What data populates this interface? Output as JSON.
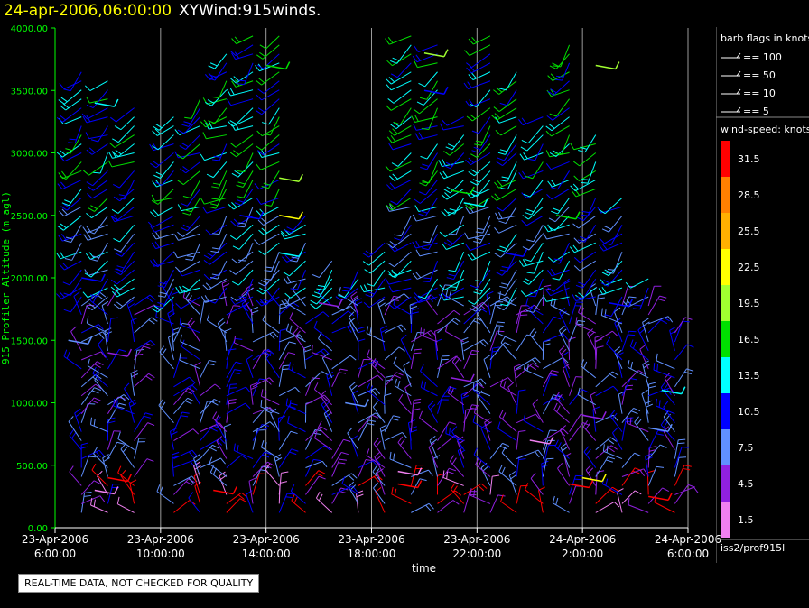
{
  "header": {
    "datetime": "24-apr-2006,06:00:00",
    "plot_name": "XYWind:915winds."
  },
  "legend": {
    "barb_title": "barb flags in knots",
    "barb_items": [
      "== 100",
      "== 50",
      "== 10",
      "== 5"
    ],
    "speed_title": "wind-speed: knots",
    "speed_scale": [
      {
        "label": "31.5",
        "color": "#ff0000"
      },
      {
        "label": "28.5",
        "color": "#ff8000"
      },
      {
        "label": "25.5",
        "color": "#ffb000"
      },
      {
        "label": "22.5",
        "color": "#ffff00"
      },
      {
        "label": "19.5",
        "color": "#a0ff30"
      },
      {
        "label": "16.5",
        "color": "#00e000"
      },
      {
        "label": "13.5",
        "color": "#00ffff"
      },
      {
        "label": "10.5",
        "color": "#0000ff"
      },
      {
        "label": "7.5",
        "color": "#6090ff"
      },
      {
        "label": "4.5",
        "color": "#9020e0"
      },
      {
        "label": "1.5",
        "color": "#f080f0"
      }
    ]
  },
  "footer": {
    "source": "iss2/prof915l",
    "qc_note": "REAL-TIME DATA, NOT CHECKED FOR QUALITY"
  },
  "chart_data": {
    "type": "scatter",
    "title": "24-apr-2006,06:00:00 XYWind:915winds.",
    "xlabel": "time",
    "ylabel": "915 Profiler Altitude (m agl)",
    "y_ticks": [
      "0.00",
      "500.00",
      "1000.00",
      "1500.00",
      "2000.00",
      "2500.00",
      "3000.00",
      "3500.00",
      "4000.00"
    ],
    "ylim": [
      0,
      4000
    ],
    "x_ticks": [
      {
        "date": "23-Apr-2006",
        "time": "6:00:00"
      },
      {
        "date": "23-Apr-2006",
        "time": "10:00:00"
      },
      {
        "date": "23-Apr-2006",
        "time": "14:00:00"
      },
      {
        "date": "23-Apr-2006",
        "time": "18:00:00"
      },
      {
        "date": "23-Apr-2006",
        "time": "22:00:00"
      },
      {
        "date": "24-Apr-2006",
        "time": "2:00:00"
      },
      {
        "date": "24-Apr-2006",
        "time": "6:00:00"
      }
    ],
    "xlim": [
      "2006-04-23 06:00",
      "2006-04-24 06:00"
    ],
    "grid": "vertical lines at x ticks",
    "profile_times": [
      "07:00",
      "08:00",
      "09:00",
      "10:30",
      "11:30",
      "12:30",
      "13:30",
      "14:30",
      "15:30",
      "16:30",
      "17:30",
      "18:30",
      "19:30",
      "20:30",
      "21:30",
      "22:30",
      "23:30",
      "00:30",
      "01:30",
      "02:30",
      "03:30",
      "04:30",
      "05:30"
    ],
    "profile_tops_m": [
      3700,
      3600,
      3400,
      3300,
      3500,
      3800,
      3950,
      3950,
      2500,
      2200,
      2100,
      2300,
      3950,
      3900,
      3300,
      3950,
      3700,
      3300,
      3900,
      3200,
      2700,
      2000,
      1600
    ],
    "series": [
      {
        "name": "1.5",
        "points": [
          [
            "07:30",
            300
          ],
          [
            "19:00",
            450
          ],
          [
            "00:00",
            700
          ]
        ]
      },
      {
        "name": "4.5",
        "points": [
          [
            "08:00",
            1400
          ],
          [
            "16:00",
            1800
          ],
          [
            "21:00",
            1200
          ],
          [
            "02:00",
            900
          ]
        ]
      },
      {
        "name": "7.5",
        "points": [
          [
            "06:30",
            1500
          ],
          [
            "17:00",
            1000
          ],
          [
            "04:30",
            800
          ]
        ]
      },
      {
        "name": "10.5",
        "points": [
          [
            "07:00",
            2000
          ],
          [
            "13:00",
            2500
          ],
          [
            "20:00",
            3500
          ],
          [
            "23:00",
            2200
          ],
          [
            "03:00",
            1800
          ]
        ]
      },
      {
        "name": "13.5",
        "points": [
          [
            "07:30",
            3400
          ],
          [
            "14:30",
            2200
          ],
          [
            "21:30",
            2600
          ],
          [
            "05:00",
            1100
          ]
        ]
      },
      {
        "name": "16.5",
        "points": [
          [
            "14:00",
            3700
          ],
          [
            "21:00",
            2700
          ],
          [
            "01:00",
            2500
          ]
        ]
      },
      {
        "name": "19.5",
        "points": [
          [
            "14:30",
            2800
          ],
          [
            "20:00",
            3800
          ],
          [
            "02:30",
            3700
          ]
        ]
      },
      {
        "name": "22.5",
        "points": [
          [
            "14:30",
            2500
          ],
          [
            "02:00",
            400
          ]
        ]
      },
      {
        "name": "31.5",
        "points": [
          [
            "08:00",
            400
          ],
          [
            "12:00",
            300
          ],
          [
            "19:00",
            350
          ],
          [
            "01:30",
            350
          ],
          [
            "04:30",
            250
          ]
        ]
      }
    ]
  }
}
